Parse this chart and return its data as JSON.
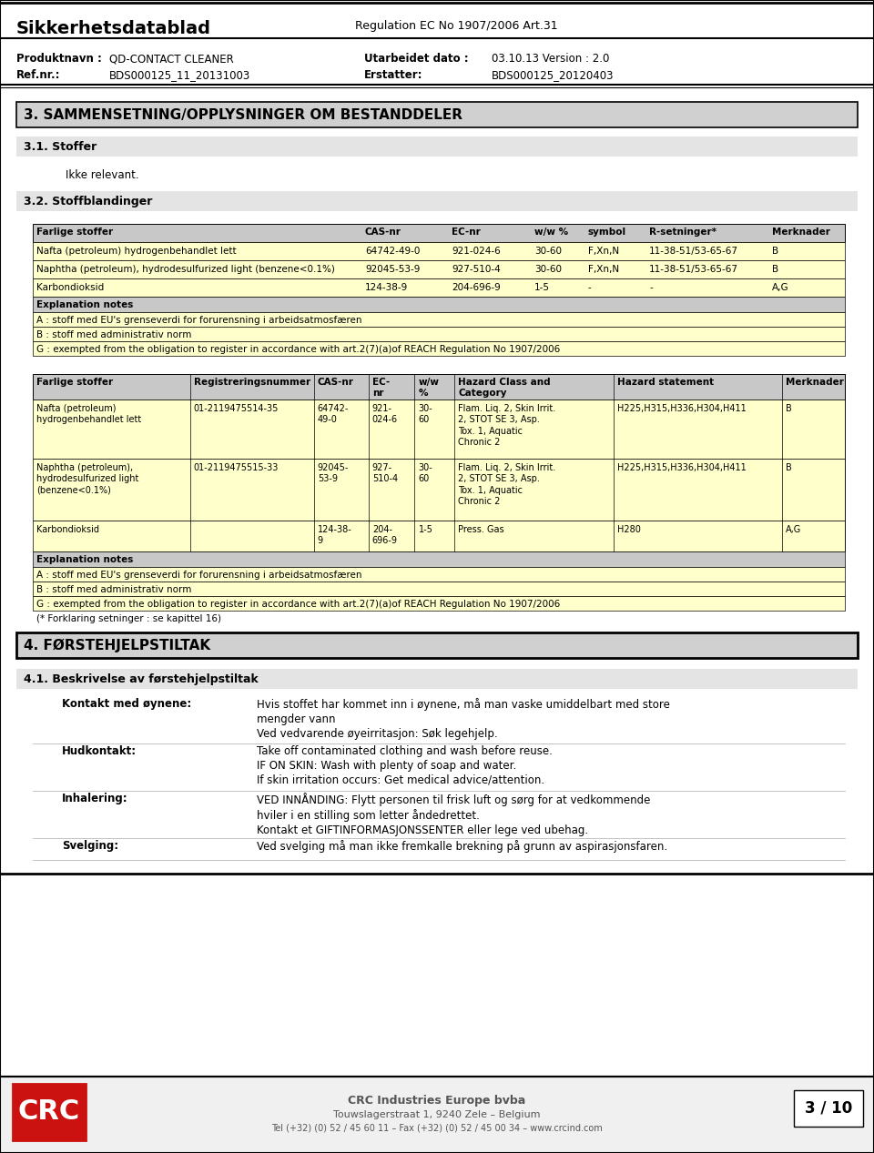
{
  "page_bg": "#ffffff",
  "header": {
    "title": "Sikkerhetsdatablad",
    "regulation": "Regulation EC No 1907/2006 Art.31",
    "produktnavn_label": "Produktnavn :",
    "produktnavn_val": "QD-CONTACT CLEANER",
    "refnr_label": "Ref.nr.:",
    "refnr_val": "BDS000125_11_20131003",
    "utarbeidet_label": "Utarbeidet dato :",
    "utarbeidet_val": "03.10.13 Version : 2.0",
    "erstatter_label": "Erstatter:",
    "erstatter_val": "BDS000125_20120403"
  },
  "section3_title": "3. SAMMENSETNING/OPPLYSNINGER OM BESTANDDELER",
  "section31_title": "3.1. Stoffer",
  "section31_text": "Ikke relevant.",
  "section32_title": "3.2. Stoffblandinger",
  "table1_headers": [
    "Farlige stoffer",
    "CAS-nr",
    "EC-nr",
    "w/w %",
    "symbol",
    "R-setninger*",
    "Merknader"
  ],
  "table1_rows": [
    [
      "Nafta (petroleum) hydrogenbehandlet lett",
      "64742-49-0",
      "921-024-6",
      "30-60",
      "F,Xn,N",
      "11-38-51/53-65-67",
      "B"
    ],
    [
      "Naphtha (petroleum), hydrodesulfurized light (benzene<0.1%)",
      "92045-53-9",
      "927-510-4",
      "30-60",
      "F,Xn,N",
      "11-38-51/53-65-67",
      "B"
    ],
    [
      "Karbondioksid",
      "124-38-9",
      "204-696-9",
      "1-5",
      "-",
      "-",
      "A,G"
    ]
  ],
  "table1_explanation_header": "Explanation notes",
  "table1_explanation_rows": [
    "A : stoff med EU's grenseverdi for forurensning i arbeidsatmosfæren",
    "B : stoff med administrativ norm",
    "G : exempted from the obligation to register in accordance with art.2(7)(a)of REACH Regulation No 1907/2006"
  ],
  "table2_headers": [
    "Farlige stoffer",
    "Registreringsnummer",
    "CAS-nr",
    "EC-\nnr",
    "w/w\n%",
    "Hazard Class and\nCategory",
    "Hazard statement",
    "Merknader"
  ],
  "table2_rows": [
    [
      "Nafta (petroleum)\nhydrogenbehandlet lett",
      "01-2119475514-35",
      "64742-\n49-0",
      "921-\n024-6",
      "30-\n60",
      "Flam. Liq. 2, Skin Irrit.\n2, STOT SE 3, Asp.\nTox. 1, Aquatic\nChronic 2",
      "H225,H315,H336,H304,H411",
      "B"
    ],
    [
      "Naphtha (petroleum),\nhydrodesulfurized light\n(benzene<0.1%)",
      "01-2119475515-33",
      "92045-\n53-9",
      "927-\n510-4",
      "30-\n60",
      "Flam. Liq. 2, Skin Irrit.\n2, STOT SE 3, Asp.\nTox. 1, Aquatic\nChronic 2",
      "H225,H315,H336,H304,H411",
      "B"
    ],
    [
      "Karbondioksid",
      "",
      "124-38-\n9",
      "204-\n696-9",
      "1-5",
      "Press. Gas",
      "H280",
      "A,G"
    ]
  ],
  "table2_explanation_header": "Explanation notes",
  "table2_explanation_rows": [
    "A : stoff med EU's grenseverdi for forurensning i arbeidsatmosfæren",
    "B : stoff med administrativ norm",
    "G : exempted from the obligation to register in accordance with art.2(7)(a)of REACH Regulation No 1907/2006"
  ],
  "forklaring_note": "(* Forklaring setninger : se kapittel 16)",
  "section4_title": "4. FØRSTEHJELPSTILTAK",
  "section41_title": "4.1. Beskrivelse av førstehjelpstiltak",
  "first_aid": [
    {
      "label": "Kontakt med øynene:",
      "text": "Hvis stoffet har kommet inn i øynene, må man vaske umiddelbart med store\nmengder vann\nVed vedvarende øyeirritasjon: Søk legehjelp."
    },
    {
      "label": "Hudkontakt:",
      "text": "Take off contaminated clothing and wash before reuse.\nIF ON SKIN: Wash with plenty of soap and water.\nIf skin irritation occurs: Get medical advice/attention."
    },
    {
      "label": "Inhalering:",
      "text": "VED INNÅNDING: Flytt personen til frisk luft og sørg for at vedkommende\nhviler i en stilling som letter åndedrettet.\nKontakt et GIFTINFORMASJONSSENTER eller lege ved ubehag."
    },
    {
      "label": "Svelging:",
      "text": "Ved svelging må man ikke fremkalle brekning på grunn av aspirasjonsfaren."
    }
  ],
  "footer_logo_text": "CRC",
  "footer_company": "CRC Industries Europe bvba",
  "footer_address": "Touwslagerstraat 1, 9240 Zele – Belgium",
  "footer_phone": "Tel (+32) (0) 52 / 45 60 11 – Fax (+32) (0) 52 / 45 00 34 – www.crcind.com",
  "footer_page": "3 / 10",
  "color_row_yellow": "#ffffcc",
  "color_row_gray": "#c8c8c8",
  "color_explanation_bg": "#c8c8c8",
  "color_section_bg": "#d0d0d0"
}
